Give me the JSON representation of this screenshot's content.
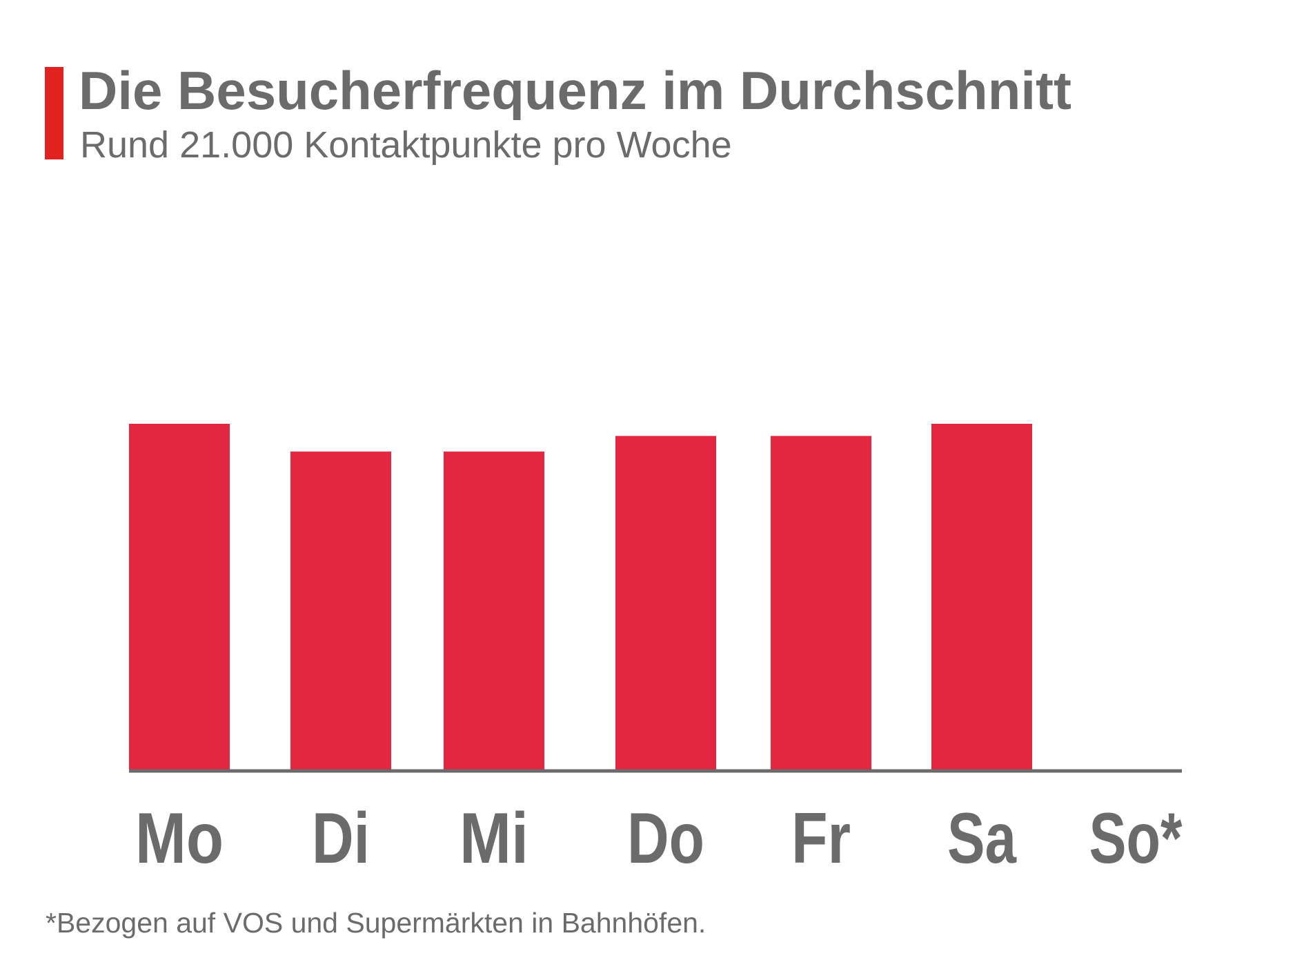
{
  "header": {
    "title": "Die Besucherfrequenz im Durchschnitt",
    "subtitle": "Rund 21.000 Kontaktpunkte pro Woche"
  },
  "footnote": "*Bezogen auf VOS und Supermärkten in Bahnhöfen.",
  "colors": {
    "accent": "#e0231f",
    "bar": "#e32741",
    "text": "#6b6b6b",
    "axis": "#6b6b6b"
  },
  "chart_data": {
    "type": "bar",
    "categories": [
      "Mo",
      "Di",
      "Mi",
      "Do",
      "Fr",
      "Sa",
      "So*"
    ],
    "values": [
      100,
      92,
      92,
      96.5,
      96.5,
      100,
      0
    ],
    "ylim": [
      0,
      100
    ],
    "grid": false,
    "legend": "none"
  }
}
